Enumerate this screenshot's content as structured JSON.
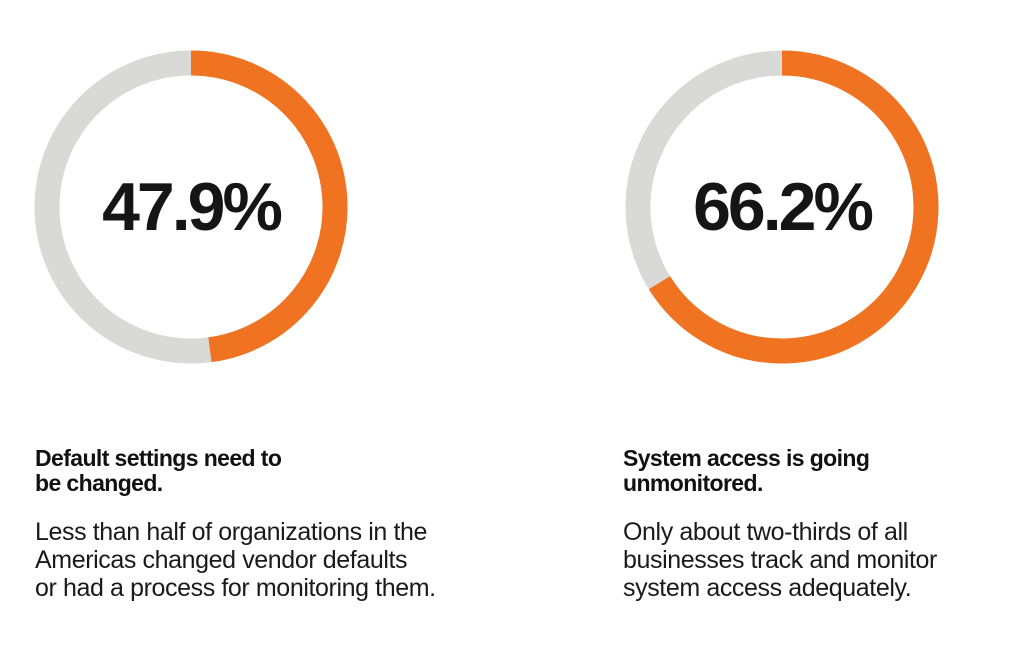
{
  "colors": {
    "accent": "#ef7321",
    "track": "#d9dad8",
    "text": "#111111"
  },
  "chart_data": [
    {
      "type": "pie",
      "variant": "donut",
      "value": 47.9,
      "value_label": "47.9%",
      "max": 100,
      "heading_lines": [
        "Default settings need to",
        "be changed."
      ],
      "body_lines": [
        "Less than half of organizations in the",
        "Americas changed vendor defaults",
        "or had a process for monitoring them."
      ]
    },
    {
      "type": "pie",
      "variant": "donut",
      "value": 66.2,
      "value_label": "66.2%",
      "max": 100,
      "heading_lines": [
        "System access is going",
        "unmonitored."
      ],
      "body_lines": [
        "Only about two-thirds of all",
        "businesses track and monitor",
        "system access adequately."
      ]
    }
  ]
}
